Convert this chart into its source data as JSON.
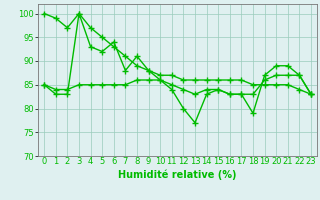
{
  "x": [
    0,
    1,
    2,
    3,
    4,
    5,
    6,
    7,
    8,
    9,
    10,
    11,
    12,
    13,
    14,
    15,
    16,
    17,
    18,
    19,
    20,
    21,
    22,
    23
  ],
  "y_main": [
    85,
    83,
    83,
    100,
    93,
    92,
    94,
    88,
    91,
    88,
    86,
    84,
    80,
    77,
    83,
    84,
    83,
    83,
    79,
    87,
    89,
    89,
    87,
    83
  ],
  "y_upper": [
    100,
    99,
    97,
    100,
    97,
    95,
    93,
    91,
    89,
    88,
    87,
    87,
    86,
    86,
    86,
    86,
    86,
    86,
    85,
    85,
    85,
    85,
    84,
    83
  ],
  "y_lower": [
    85,
    84,
    84,
    85,
    85,
    85,
    85,
    85,
    86,
    86,
    86,
    85,
    84,
    83,
    84,
    84,
    83,
    83,
    83,
    86,
    87,
    87,
    87,
    83
  ],
  "xlim": [
    -0.5,
    23.5
  ],
  "ylim": [
    70,
    102
  ],
  "yticks": [
    70,
    75,
    80,
    85,
    90,
    95,
    100
  ],
  "xticks": [
    0,
    1,
    2,
    3,
    4,
    5,
    6,
    7,
    8,
    9,
    10,
    11,
    12,
    13,
    14,
    15,
    16,
    17,
    18,
    19,
    20,
    21,
    22,
    23
  ],
  "xlabel": "Humidité relative (%)",
  "line_color": "#00bb00",
  "bg_color": "#dff0f0",
  "grid_color": "#99ccbb",
  "marker": "+",
  "marker_size": 4,
  "linewidth": 1.0,
  "xlabel_fontsize": 7,
  "tick_fontsize": 6
}
